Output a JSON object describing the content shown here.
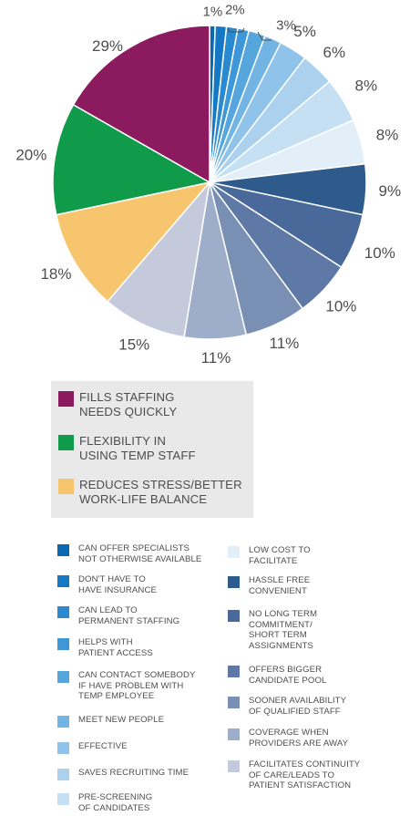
{
  "chart_data": {
    "type": "pie",
    "slices": [
      {
        "label": "CAN OFFER SPECIALISTS\nNOT OTHERWISE AVAILABLE",
        "value": 1,
        "value_label": "1%",
        "color": "#0a67b2"
      },
      {
        "label": "DON'T HAVE TO\nHAVE INSURANCE",
        "value": 2,
        "value_label": "",
        "color": "#1478c4"
      },
      {
        "label": "CAN LEAD TO\nPERMANENT STAFFING",
        "value": 2,
        "value_label": "2%",
        "color": "#2a8ad0"
      },
      {
        "label": "HELPS WITH\nPATIENT ACCESS",
        "value": 2,
        "value_label": "",
        "color": "#3d97d8"
      },
      {
        "label": "CAN CONTACT SOMEBODY\nIF HAVE PROBLEM WITH\nTEMP EMPLOYEE",
        "value": 3,
        "value_label": "",
        "color": "#56a6de"
      },
      {
        "label": "MEET NEW PEOPLE",
        "value": 3,
        "value_label": "3%",
        "color": "#72b4e3"
      },
      {
        "label": "EFFECTIVE",
        "value": 5,
        "value_label": "5%",
        "color": "#8fc3e9"
      },
      {
        "label": "SAVES RECRUITING TIME",
        "value": 6,
        "value_label": "6%",
        "color": "#abd1ee"
      },
      {
        "label": "PRE-SCREENING\nOF CANDIDATES",
        "value": 8,
        "value_label": "8%",
        "color": "#c6e0f3"
      },
      {
        "label": "LOW COST TO\nFACILITATE",
        "value": 8,
        "value_label": "8%",
        "color": "#e2eef8"
      },
      {
        "label": "HASSLE FREE\nCONVENIENT",
        "value": 9,
        "value_label": "9%",
        "color": "#2e5b8c"
      },
      {
        "label": "NO LONG TERM\nCOMMITMENT/\nSHORT TERM\nASSIGNMENTS",
        "value": 10,
        "value_label": "10%",
        "color": "#49699a"
      },
      {
        "label": "OFFERS BIGGER\nCANDIDATE POOL",
        "value": 10,
        "value_label": "10%",
        "color": "#5e79a6"
      },
      {
        "label": "SOONER AVAILABILITY\nOF QUALIFIED STAFF",
        "value": 11,
        "value_label": "11%",
        "color": "#7a8fb4"
      },
      {
        "label": "COVERAGE WHEN\nPROVIDERS ARE AWAY",
        "value": 11,
        "value_label": "11%",
        "color": "#9eadca"
      },
      {
        "label": "FACILITATES CONTINUITY\nOF CARE/LEADS TO\nPATIENT SATISFACTION",
        "value": 15,
        "value_label": "15%",
        "color": "#c4cadc"
      },
      {
        "label": "REDUCES STRESS/BETTER\nWORK-LIFE BALANCE",
        "value": 18,
        "value_label": "18%",
        "color": "#f8c56f"
      },
      {
        "label": "FLEXIBILITY IN\nUSING TEMP STAFF",
        "value": 20,
        "value_label": "20%",
        "color": "#0f9b4a"
      },
      {
        "label": "FILLS STAFFING\nNEEDS QUICKLY",
        "value": 29,
        "value_label": "29%",
        "color": "#8b1a5e"
      }
    ],
    "big_legend": [
      {
        "label": "FILLS STAFFING\nNEEDS QUICKLY",
        "color": "#8b1a5e"
      },
      {
        "label": "FLEXIBILITY IN\nUSING TEMP STAFF",
        "color": "#0f9b4a"
      },
      {
        "label": "REDUCES STRESS/BETTER\nWORK-LIFE BALANCE",
        "color": "#f8c56f"
      }
    ],
    "small_legend_left": [
      {
        "label": "CAN OFFER SPECIALISTS\nNOT OTHERWISE AVAILABLE",
        "color": "#0a67b2"
      },
      {
        "label": "DON'T HAVE TO\nHAVE INSURANCE",
        "color": "#1478c4"
      },
      {
        "label": "CAN LEAD TO\nPERMANENT STAFFING",
        "color": "#2a8ad0"
      },
      {
        "label": "HELPS WITH\nPATIENT ACCESS",
        "color": "#3d97d8"
      },
      {
        "label": "CAN CONTACT SOMEBODY\nIF HAVE PROBLEM WITH\nTEMP EMPLOYEE",
        "color": "#56a6de"
      },
      {
        "label": "MEET NEW PEOPLE",
        "color": "#72b4e3"
      },
      {
        "label": "EFFECTIVE",
        "color": "#8fc3e9"
      },
      {
        "label": "SAVES RECRUITING TIME",
        "color": "#abd1ee"
      },
      {
        "label": "PRE-SCREENING\nOF CANDIDATES",
        "color": "#c6e0f3"
      }
    ],
    "small_legend_right": [
      {
        "label": "LOW COST TO\nFACILITATE",
        "color": "#e2eef8"
      },
      {
        "label": "HASSLE FREE\nCONVENIENT",
        "color": "#2e5b8c"
      },
      {
        "label": "NO LONG TERM\nCOMMITMENT/\nSHORT TERM\nASSIGNMENTS",
        "color": "#49699a"
      },
      {
        "label": "OFFERS BIGGER\nCANDIDATE POOL",
        "color": "#5e79a6"
      },
      {
        "label": "SOONER AVAILABILITY\nOF QUALIFIED STAFF",
        "color": "#7a8fb4"
      },
      {
        "label": "COVERAGE WHEN\nPROVIDERS ARE AWAY",
        "color": "#9eadca"
      },
      {
        "label": "FACILITATES CONTINUITY\nOF CARE/LEADS TO\nPATIENT SATISFACTION",
        "color": "#c4cadc"
      }
    ]
  }
}
